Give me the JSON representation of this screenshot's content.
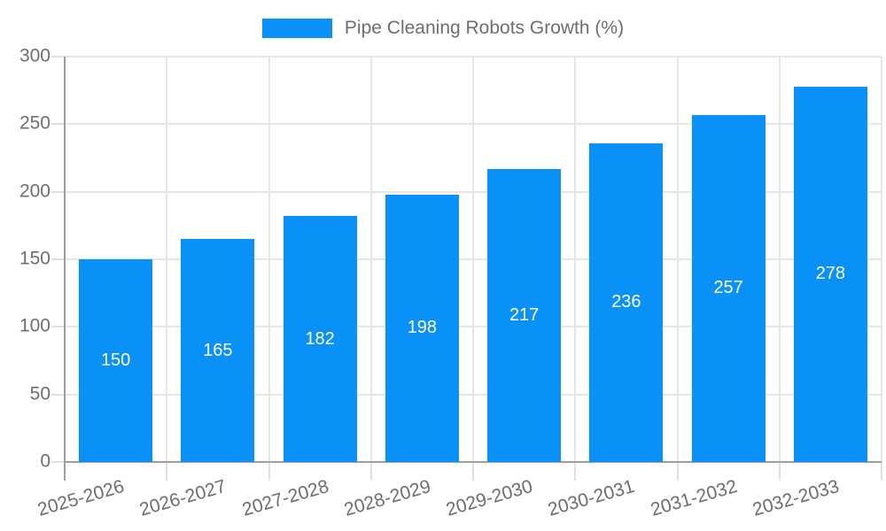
{
  "legend": {
    "label": "Pipe Cleaning Robots Growth (%)",
    "swatch_color": "#0991f8"
  },
  "chart_data": {
    "type": "bar",
    "title": "Pipe Cleaning Robots Growth (%)",
    "series_name": "Pipe Cleaning Robots Growth (%)",
    "categories": [
      "2025-2026",
      "2026-2027",
      "2027-2028",
      "2028-2029",
      "2029-2030",
      "2030-2031",
      "2031-2032",
      "2032-2033"
    ],
    "values": [
      150,
      165,
      182,
      198,
      217,
      236,
      257,
      278
    ],
    "xlabel": "",
    "ylabel": "",
    "ylim": [
      0,
      300
    ],
    "yticks": [
      0,
      50,
      100,
      150,
      200,
      250,
      300
    ],
    "grid": true,
    "legend_position": "top-center",
    "x_label_rotation_deg": -16,
    "colors": {
      "bar": "#0991f8",
      "value_label": "#ffffff",
      "gridline": "#e6e6e6",
      "tick_mark": "#e0e0e0",
      "axis": "#9e9e9e",
      "tick_text": "#6e6e6e",
      "background": "#ffffff"
    }
  }
}
